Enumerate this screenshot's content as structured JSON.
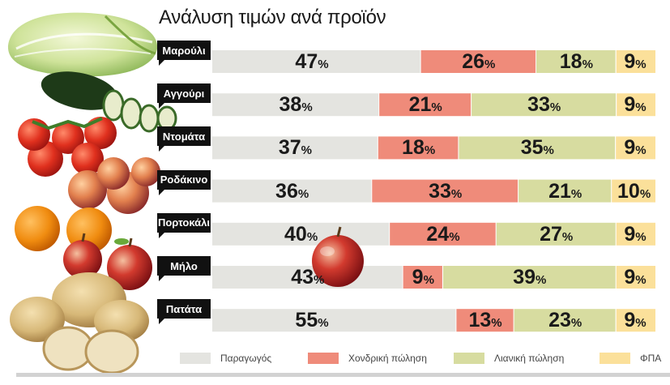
{
  "chart_data": {
    "type": "bar",
    "stacked": true,
    "orientation": "horizontal",
    "title": "Ανάλυση τιμών ανά προϊόν",
    "categories": [
      "Μαρούλι",
      "Αγγούρι",
      "Ντομάτα",
      "Ροδάκινο",
      "Πορτοκάλι",
      "Μήλο",
      "Πατάτα"
    ],
    "series": [
      {
        "name": "Παραγωγός",
        "color": "#e4e4e0",
        "values": [
          47,
          38,
          37,
          36,
          40,
          43,
          55
        ]
      },
      {
        "name": "Χονδρική πώληση",
        "color": "#ef8b7a",
        "values": [
          26,
          21,
          18,
          33,
          24,
          9,
          13
        ]
      },
      {
        "name": "Λιανική πώληση",
        "color": "#d7dca0",
        "values": [
          18,
          33,
          35,
          21,
          27,
          39,
          23
        ]
      },
      {
        "name": "ΦΠΑ",
        "color": "#fbe09a",
        "values": [
          9,
          9,
          9,
          10,
          9,
          9,
          9
        ]
      }
    ],
    "unit": "%",
    "legend_position": "bottom"
  },
  "illustrations": [
    "cabbage",
    "zucchini",
    "tomatoes",
    "peaches",
    "oranges",
    "apples",
    "apple",
    "potatoes"
  ]
}
